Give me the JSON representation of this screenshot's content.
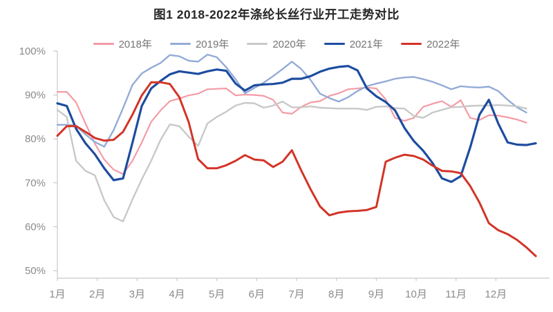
{
  "title": "图1 2018-2022年涤纶长丝行业开工走势对比",
  "chart_data": {
    "type": "line",
    "title": "图1 2018-2022年涤纶长丝行业开工走势对比",
    "xlabel": "",
    "ylabel": "",
    "x_resolution": "weekly",
    "categories": [
      "1月",
      "2月",
      "3月",
      "4月",
      "5月",
      "6月",
      "7月",
      "8月",
      "9月",
      "10月",
      "11月",
      "12月"
    ],
    "y_ticks": [
      {
        "value": 100,
        "label": "100%"
      },
      {
        "value": 90,
        "label": "90%"
      },
      {
        "value": 80,
        "label": "80%"
      },
      {
        "value": 70,
        "label": "70%"
      },
      {
        "value": 60,
        "label": "60%"
      },
      {
        "value": 50,
        "label": "50%"
      }
    ],
    "ylim": [
      50,
      100
    ],
    "grid": false,
    "legend_position": "top",
    "series": [
      {
        "name": "2018年",
        "color": "#F49BA4",
        "width": 2.2,
        "values": [
          90.7,
          90.7,
          88.3,
          83.5,
          78.9,
          75.3,
          73.0,
          72.0,
          75.0,
          79.2,
          83.9,
          86.5,
          88.6,
          89.2,
          89.9,
          90.3,
          91.3,
          91.4,
          91.5,
          89.9,
          90.1,
          90.0,
          89.8,
          88.9,
          86.0,
          85.7,
          87.3,
          88.3,
          88.6,
          89.8,
          90.4,
          91.3,
          91.5,
          91.7,
          91.5,
          89.0,
          84.8,
          84.1,
          84.8,
          87.3,
          88.0,
          88.6,
          87.3,
          88.8,
          84.8,
          84.3,
          85.4,
          85.3,
          84.9,
          84.4,
          83.7
        ]
      },
      {
        "name": "2019年",
        "color": "#93ABD7",
        "width": 2.4,
        "values": [
          83.2,
          83.2,
          83.0,
          81.0,
          79.3,
          78.2,
          82.0,
          87.0,
          92.3,
          94.9,
          96.2,
          97.3,
          99.1,
          98.8,
          97.8,
          97.6,
          99.2,
          98.6,
          96.3,
          93.6,
          90.4,
          91.6,
          92.8,
          94.3,
          95.9,
          97.6,
          95.9,
          93.4,
          90.3,
          89.3,
          88.5,
          89.5,
          90.9,
          92.0,
          92.6,
          93.1,
          93.7,
          94.0,
          94.1,
          93.6,
          93.0,
          92.2,
          91.3,
          92.0,
          91.8,
          91.7,
          91.9,
          90.9,
          88.9,
          87.2,
          86.0
        ]
      },
      {
        "name": "2020年",
        "color": "#C8C8C8",
        "width": 2.4,
        "values": [
          86.6,
          85.0,
          75.0,
          72.7,
          71.7,
          66.0,
          62.2,
          61.2,
          66.2,
          70.8,
          75.0,
          79.8,
          83.3,
          82.9,
          80.5,
          78.4,
          83.5,
          85.0,
          86.2,
          87.6,
          88.2,
          88.1,
          87.1,
          87.6,
          88.5,
          87.2,
          87.2,
          87.4,
          87.1,
          87.0,
          86.9,
          86.9,
          86.9,
          86.6,
          87.3,
          87.4,
          87.0,
          86.9,
          85.2,
          84.8,
          86.0,
          86.6,
          87.2,
          87.3,
          87.5,
          87.6,
          87.6,
          87.7,
          87.6,
          87.4,
          86.9
        ]
      },
      {
        "name": "2021年",
        "color": "#1D4CA0",
        "width": 3.2,
        "values": [
          88.1,
          87.5,
          82.3,
          79.0,
          76.5,
          73.3,
          70.6,
          71.0,
          79.1,
          87.5,
          91.5,
          93.2,
          94.7,
          95.4,
          95.1,
          94.8,
          95.4,
          95.8,
          95.5,
          92.6,
          91.0,
          92.2,
          92.4,
          92.5,
          92.8,
          93.7,
          93.7,
          94.3,
          95.3,
          96.0,
          96.4,
          96.6,
          95.6,
          91.5,
          89.7,
          88.4,
          86.5,
          82.5,
          79.5,
          77.3,
          74.5,
          71.0,
          70.2,
          71.5,
          78.0,
          85.5,
          88.9,
          83.5,
          79.2,
          78.7,
          78.6,
          79.0
        ]
      },
      {
        "name": "2022年",
        "color": "#D23427",
        "width": 3.0,
        "values": [
          80.7,
          82.9,
          82.9,
          81.6,
          80.2,
          79.6,
          79.8,
          81.6,
          85.5,
          89.9,
          92.9,
          92.9,
          92.5,
          89.5,
          83.8,
          75.4,
          73.3,
          73.3,
          74.0,
          75.0,
          76.3,
          75.3,
          75.1,
          73.6,
          74.8,
          77.4,
          72.8,
          68.5,
          64.6,
          62.6,
          63.2,
          63.5,
          63.6,
          63.8,
          64.5,
          74.8,
          75.7,
          76.4,
          76.1,
          75.3,
          73.9,
          72.7,
          72.6,
          72.2,
          69.3,
          65.5,
          60.8,
          59.2,
          58.3,
          57.0,
          55.3,
          53.3
        ]
      }
    ]
  }
}
